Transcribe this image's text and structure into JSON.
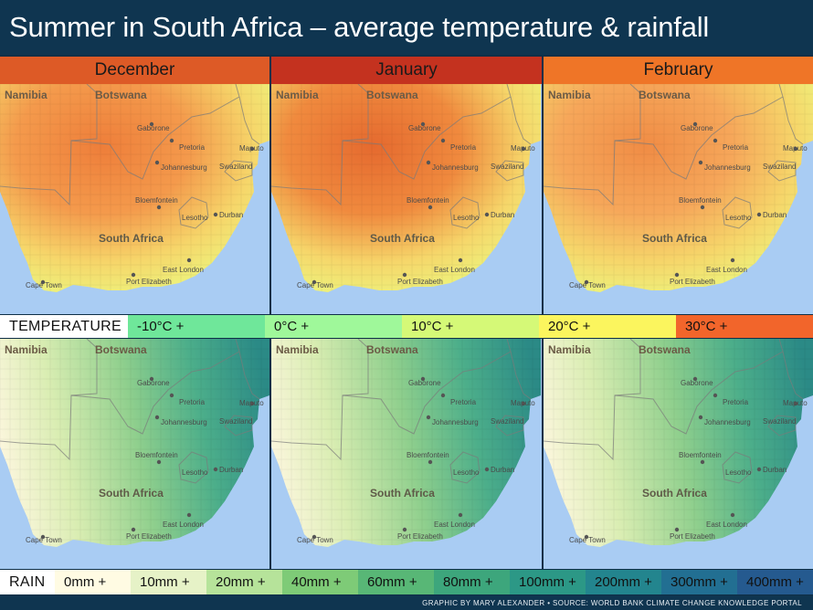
{
  "title": "Summer in South Africa – average temperature & rainfall",
  "months": [
    {
      "label": "December",
      "header_color": "#dd5a26",
      "temp_tint": "#f49a4c",
      "temp_core": "#ee7e3a",
      "temp_intensity": 0.8
    },
    {
      "label": "January",
      "header_color": "#c4321f",
      "temp_tint": "#f08a3e",
      "temp_core": "#e56a2f",
      "temp_intensity": 1.0
    },
    {
      "label": "February",
      "header_color": "#ef7527",
      "temp_tint": "#f6a75a",
      "temp_core": "#f08c45",
      "temp_intensity": 0.7
    }
  ],
  "map_labels": {
    "countries": [
      "Namibia",
      "Botswana",
      "South Africa"
    ],
    "cities": [
      "Gaborone",
      "Pretoria",
      "Johannesburg",
      "Maputo",
      "Swaziland",
      "Bloemfontein",
      "Lesotho",
      "Durban",
      "East London",
      "Port Elizabeth",
      "Cape Town"
    ]
  },
  "temperature_legend": {
    "label": "TEMPERATURE",
    "items": [
      {
        "text": "-10°C +",
        "color": "#6fe79a"
      },
      {
        "text": "0°C +",
        "color": "#9ff89a"
      },
      {
        "text": "10°C +",
        "color": "#d5f977"
      },
      {
        "text": "20°C +",
        "color": "#fbf55e"
      },
      {
        "text": "30°C +",
        "color": "#f2652b"
      }
    ]
  },
  "rain_legend": {
    "label": "RAIN",
    "items": [
      {
        "text": "0mm +",
        "color": "#fffbe3"
      },
      {
        "text": "10mm +",
        "color": "#e6f2c7"
      },
      {
        "text": "20mm +",
        "color": "#b6e39a"
      },
      {
        "text": "40mm +",
        "color": "#7ecb77"
      },
      {
        "text": "60mm +",
        "color": "#58b776"
      },
      {
        "text": "80mm +",
        "color": "#3da67c"
      },
      {
        "text": "100mm +",
        "color": "#2c9886"
      },
      {
        "text": "200mm +",
        "color": "#23858e"
      },
      {
        "text": "300mm +",
        "color": "#226f92"
      },
      {
        "text": "400mm +",
        "color": "#255a8f"
      }
    ]
  },
  "credit": "GRAPHIC BY MARY ALEXANDER • SOURCE: WORLD BANK CLIMATE CHANGE KNOWLEDGE PORTAL"
}
